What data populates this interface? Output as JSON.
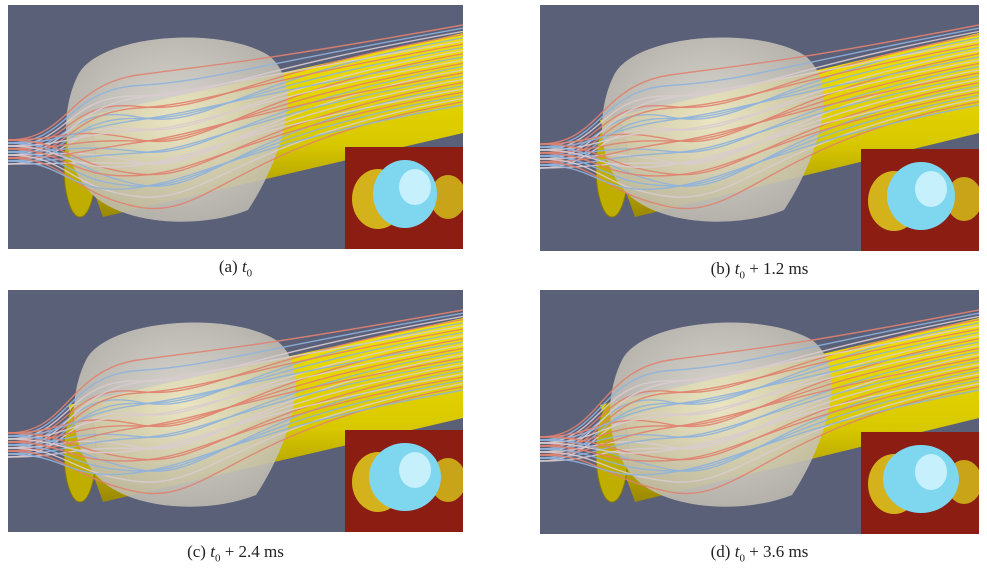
{
  "panels": [
    {
      "label": "(a)",
      "time_var": "t",
      "time_sub": "0"
    },
    {
      "label": "(b)",
      "time_var": "t",
      "time_sub": "0",
      "offset": "+ 1.2 ms"
    },
    {
      "label": "(c)",
      "time_var": "t",
      "time_sub": "0",
      "offset": "+ 2.4 ms"
    },
    {
      "label": "(d)",
      "time_var": "t",
      "time_sub": "0",
      "offset": "+ 3.6 ms"
    }
  ]
}
